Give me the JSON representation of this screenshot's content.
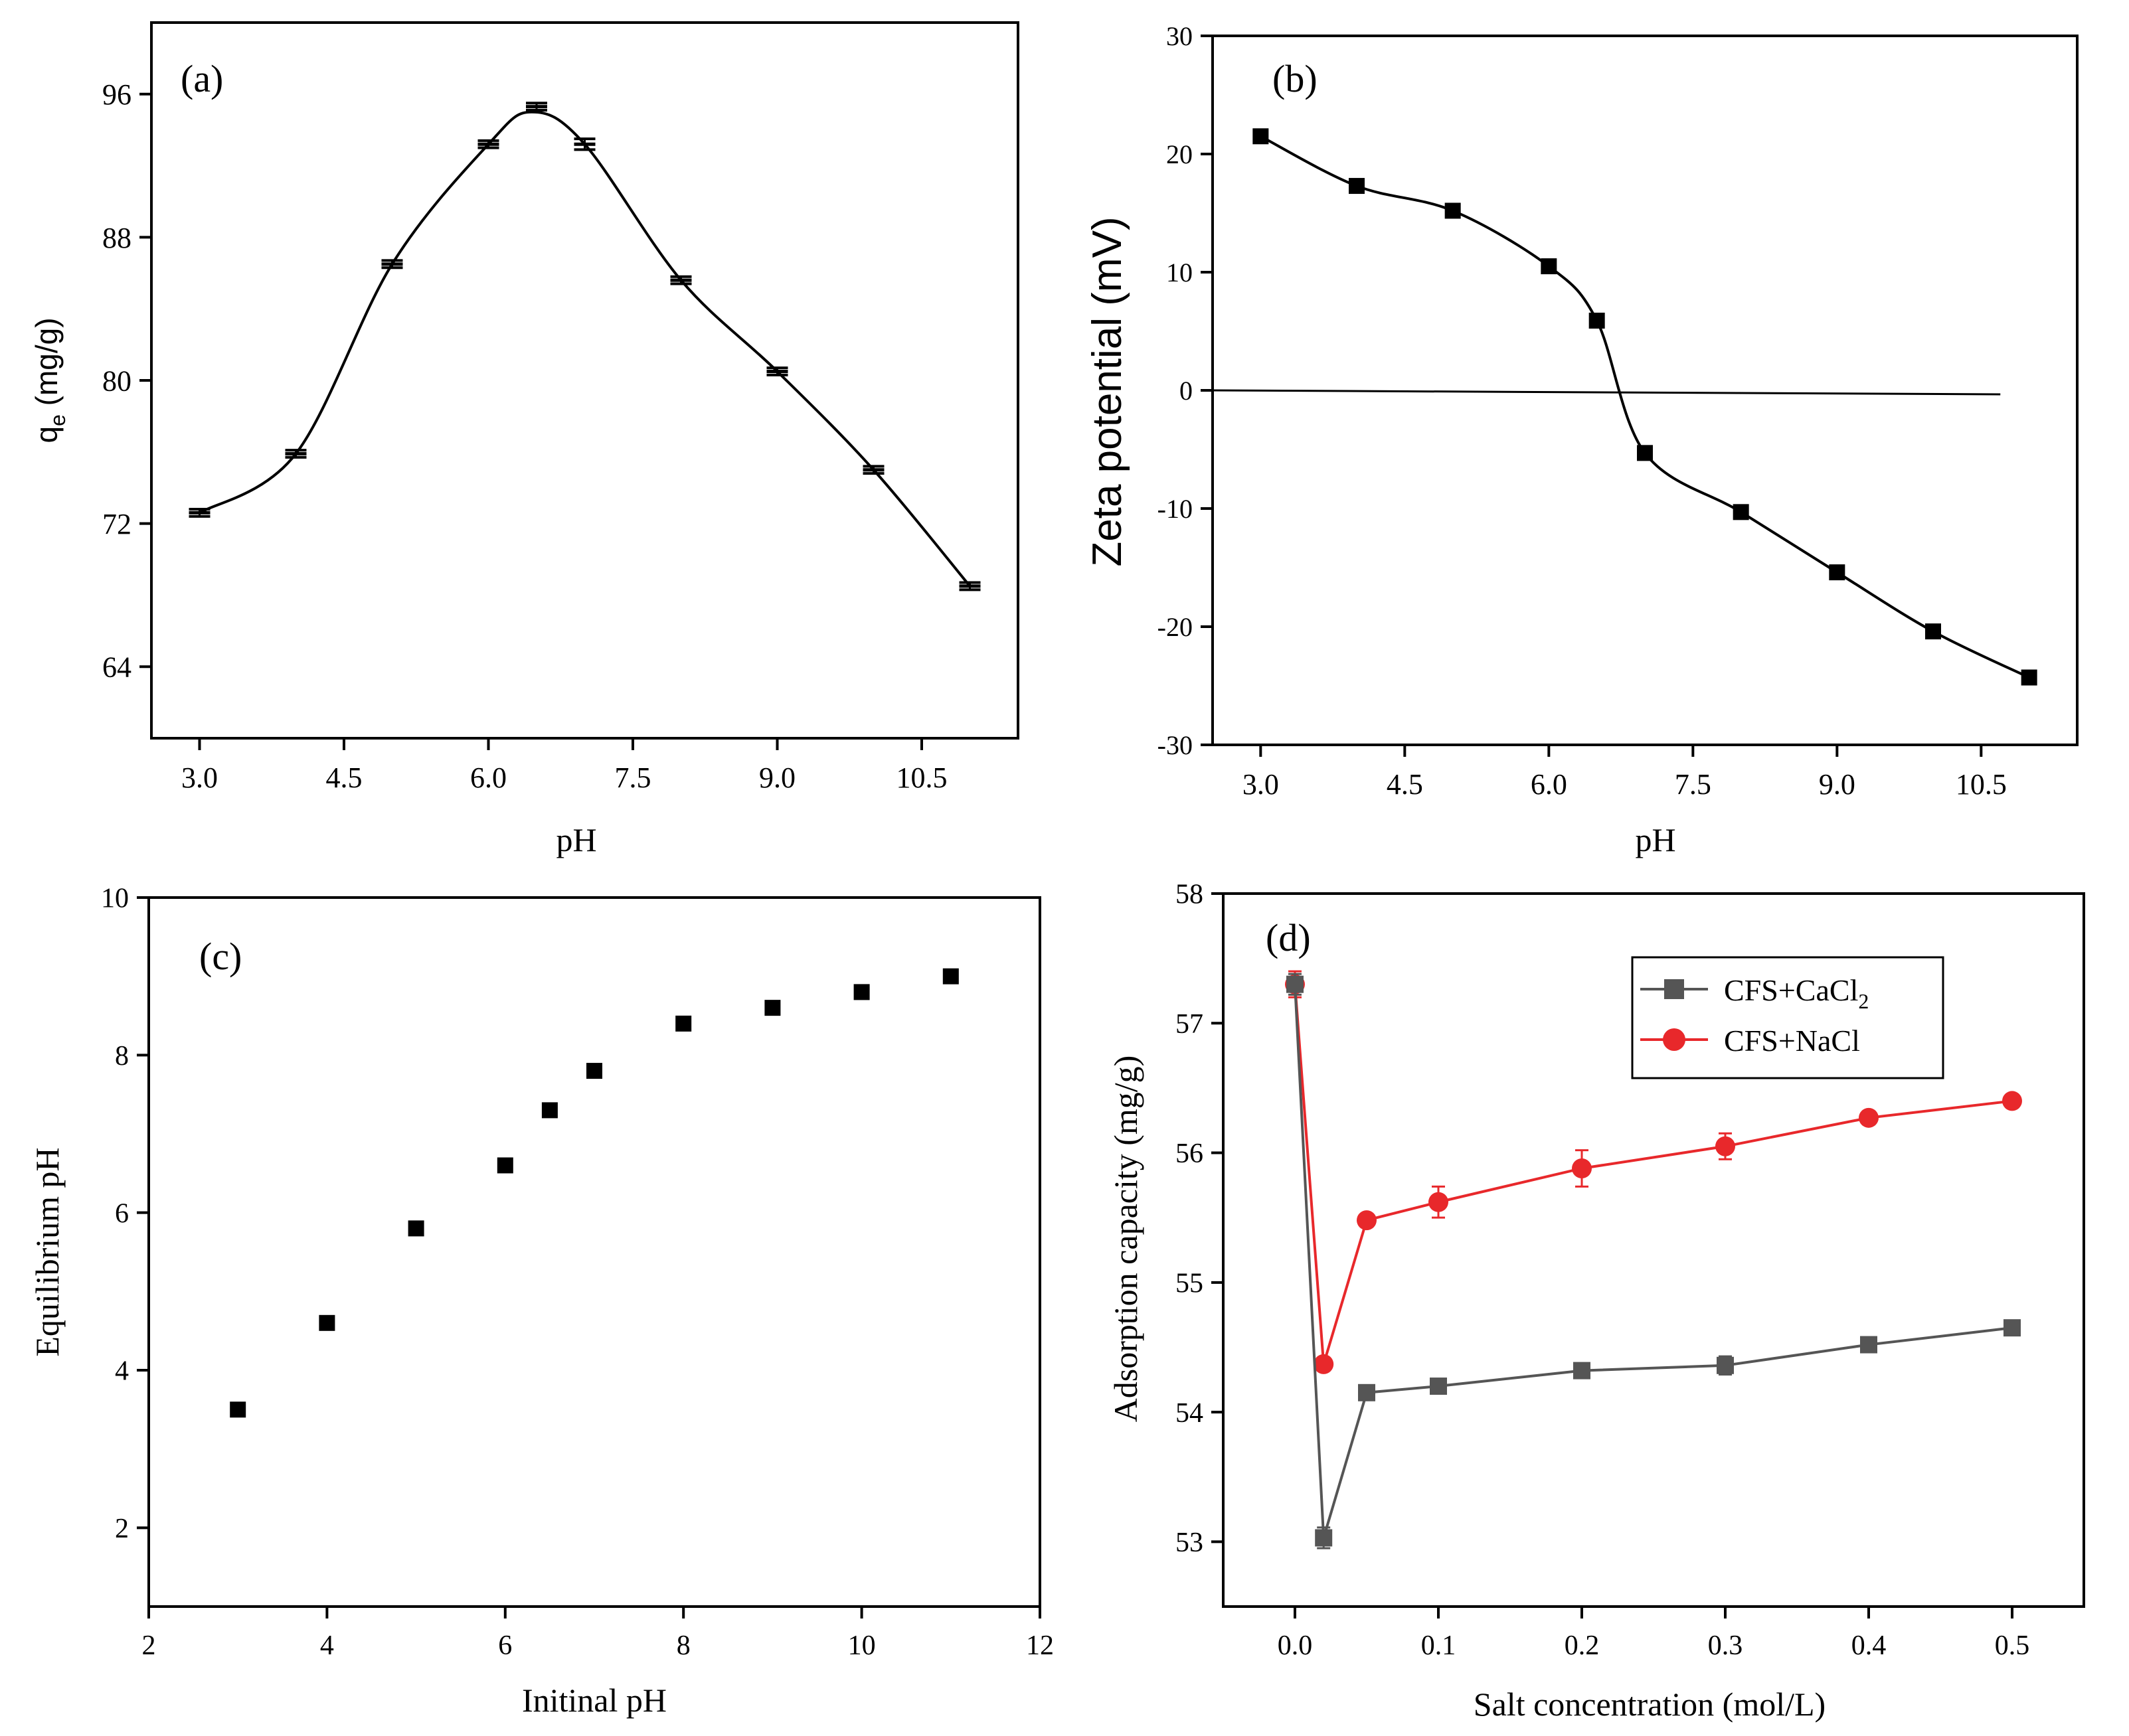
{
  "chart_data": [
    {
      "id": "a",
      "panel_label": "(a)",
      "type": "line",
      "xlabel": "pH",
      "ylabel_main": "q",
      "ylabel_sub": "e",
      "ylabel_rest": " (mg/g)",
      "xlim": [
        2.5,
        11.5
      ],
      "ylim": [
        60,
        100
      ],
      "xticks": [
        3.0,
        4.5,
        6.0,
        7.5,
        9.0,
        10.5
      ],
      "xtick_labels": [
        "3.0",
        "4.5",
        "6.0",
        "7.5",
        "9.0",
        "10.5"
      ],
      "yticks": [
        64,
        72,
        80,
        88,
        96
      ],
      "ytick_labels": [
        "64",
        "72",
        "80",
        "88",
        "96"
      ],
      "x": [
        3,
        4,
        5,
        6,
        6.5,
        7,
        8,
        9,
        10,
        11
      ],
      "y": [
        72.6,
        75.9,
        86.5,
        93.2,
        95.3,
        93.2,
        85.6,
        80.5,
        75.0,
        68.5
      ],
      "error": [
        0.2,
        0.2,
        0.2,
        0.2,
        0.2,
        0.3,
        0.2,
        0.2,
        0.2,
        0.2
      ],
      "peak": [
        6.45,
        95.0
      ]
    },
    {
      "id": "b",
      "panel_label": "(b)",
      "type": "line",
      "xlabel": "pH",
      "ylabel": "Zeta potential (mV)",
      "xlim": [
        2.5,
        11.5
      ],
      "ylim": [
        -30,
        30
      ],
      "xticks": [
        3.0,
        4.5,
        6.0,
        7.5,
        9.0,
        10.5
      ],
      "xtick_labels": [
        "3.0",
        "4.5",
        "6.0",
        "7.5",
        "9.0",
        "10.5"
      ],
      "yticks": [
        -30,
        -20,
        -10,
        0,
        10,
        20,
        30
      ],
      "ytick_labels": [
        "-30",
        "-20",
        "-10",
        "0",
        "10",
        "20",
        "30"
      ],
      "x": [
        3,
        4,
        5,
        6,
        6.5,
        7,
        8,
        9,
        10,
        11
      ],
      "y": [
        21.5,
        17.3,
        15.2,
        10.5,
        5.9,
        -5.3,
        -10.3,
        -15.4,
        -20.4,
        -24.3
      ],
      "zero_line": {
        "x_start": 2.5,
        "x_end": 10.7,
        "y": 0
      }
    },
    {
      "id": "c",
      "panel_label": "(c)",
      "type": "scatter",
      "xlabel": "Initinal pH",
      "ylabel": "Equilibrium pH",
      "xlim": [
        2,
        12
      ],
      "ylim": [
        1,
        10
      ],
      "xticks": [
        2,
        4,
        6,
        8,
        10,
        12
      ],
      "xtick_labels": [
        "2",
        "4",
        "6",
        "8",
        "10",
        "12"
      ],
      "yticks": [
        2,
        4,
        6,
        8,
        10
      ],
      "ytick_labels": [
        "2",
        "4",
        "6",
        "8",
        "10"
      ],
      "x": [
        3,
        4,
        5,
        6,
        6.5,
        7,
        8,
        9,
        10,
        11
      ],
      "y": [
        3.5,
        4.6,
        5.8,
        6.6,
        7.3,
        7.8,
        8.4,
        8.6,
        8.8,
        9.0
      ]
    },
    {
      "id": "d",
      "panel_label": "(d)",
      "type": "line",
      "xlabel": "Salt concentration (mol/L)",
      "ylabel": "Adsorption capacity (mg/g)",
      "xlim": [
        -0.05,
        0.55
      ],
      "ylim": [
        52.5,
        58
      ],
      "xticks": [
        0.0,
        0.1,
        0.2,
        0.3,
        0.4,
        0.5
      ],
      "xtick_labels": [
        "0.0",
        "0.1",
        "0.2",
        "0.3",
        "0.4",
        "0.5"
      ],
      "yticks": [
        53,
        54,
        55,
        56,
        57,
        58
      ],
      "ytick_labels": [
        "53",
        "54",
        "55",
        "56",
        "57",
        "58"
      ],
      "x": [
        0,
        0.02,
        0.05,
        0.1,
        0.2,
        0.3,
        0.4,
        0.5
      ],
      "series": [
        {
          "name_main": "CFS+CaCl",
          "name_sub": "2",
          "color": "#555555",
          "marker": "square",
          "values": [
            57.3,
            53.03,
            54.15,
            54.2,
            54.32,
            54.36,
            54.52,
            54.65
          ],
          "error": [
            0.08,
            0.08,
            0.05,
            0.05,
            0.05,
            0.07,
            0.05,
            0.05
          ]
        },
        {
          "name": "CFS+NaCl",
          "color": "#e8282b",
          "marker": "circle",
          "values": [
            57.3,
            54.37,
            55.48,
            55.62,
            55.88,
            56.05,
            56.27,
            56.4
          ],
          "error": [
            0.1,
            0.05,
            0.05,
            0.12,
            0.14,
            0.1,
            0.05,
            0.05
          ]
        }
      ],
      "legend_position": "top-right"
    }
  ]
}
